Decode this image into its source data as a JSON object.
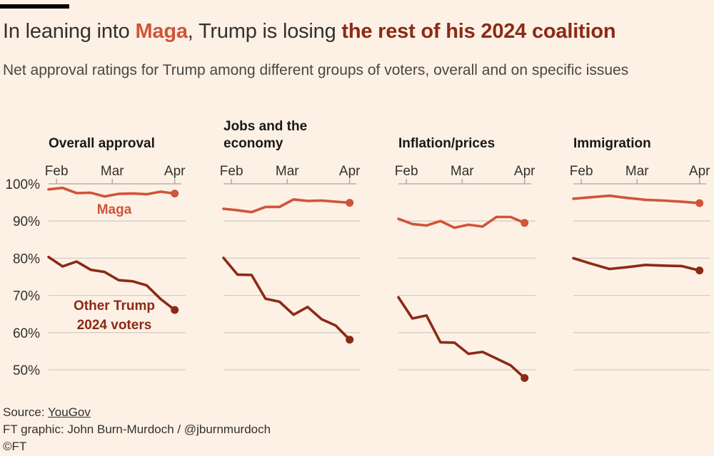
{
  "header": {
    "title_pre": "In leaning into ",
    "title_maga": "Maga",
    "title_mid": ", Trump is losing ",
    "title_rest": "the rest of his 2024 coalition",
    "subtitle": "Net approval ratings for Trump among different groups of voters, overall and on specific issues"
  },
  "colors": {
    "maga": "#d0543a",
    "other": "#8b2a17",
    "grid": "#d6ccc2",
    "axis": "#a9a29b",
    "text": "#33302e",
    "background": "#fdf1e5"
  },
  "chart_data": {
    "type": "line",
    "ylim": [
      45,
      102
    ],
    "yticks": [
      50,
      60,
      70,
      80,
      90,
      100
    ],
    "ytick_labels": [
      "50%",
      "60%",
      "70%",
      "80%",
      "90%",
      "100%"
    ],
    "xticks": [
      "Feb",
      "Mar",
      "Apr"
    ],
    "grid": true,
    "series_labels": {
      "maga": "Maga",
      "other_line1": "Other Trump",
      "other_line2": "2024 voters"
    },
    "panels": [
      {
        "title_lines": [
          "Overall approval"
        ],
        "series": [
          {
            "key": "maga",
            "values": [
              98.5,
              98.9,
              97.5,
              97.6,
              96.6,
              97.3,
              97.4,
              97.2,
              97.9,
              97.4
            ]
          },
          {
            "key": "other",
            "values": [
              80.3,
              77.8,
              79.1,
              76.9,
              76.3,
              74.1,
              73.8,
              72.7,
              69.0,
              66.1
            ]
          }
        ]
      },
      {
        "title_lines": [
          "Jobs and the",
          "economy"
        ],
        "series": [
          {
            "key": "maga",
            "values": [
              93.3,
              92.9,
              92.4,
              93.8,
              93.8,
              95.8,
              95.4,
              95.5,
              95.2,
              94.9
            ]
          },
          {
            "key": "other",
            "values": [
              80.1,
              75.6,
              75.5,
              69.1,
              68.3,
              64.8,
              66.9,
              63.6,
              61.9,
              58.1
            ]
          }
        ]
      },
      {
        "title_lines": [
          "Inflation/prices"
        ],
        "series": [
          {
            "key": "maga",
            "values": [
              90.6,
              89.2,
              88.8,
              90.0,
              88.2,
              89.0,
              88.5,
              91.1,
              91.1,
              89.5
            ]
          },
          {
            "key": "other",
            "values": [
              69.5,
              63.8,
              64.6,
              57.4,
              57.3,
              54.3,
              54.8,
              53.0,
              51.2,
              47.8
            ]
          }
        ]
      },
      {
        "title_lines": [
          "Immigration"
        ],
        "series": [
          {
            "key": "maga",
            "values": [
              96.0,
              96.4,
              96.8,
              96.2,
              95.7,
              95.5,
              95.2,
              94.8
            ]
          },
          {
            "key": "other",
            "values": [
              80.0,
              78.5,
              77.1,
              77.6,
              78.2,
              78.0,
              77.9,
              76.7
            ]
          }
        ]
      }
    ]
  },
  "footer": {
    "source_label": "Source: ",
    "source_name": "YouGov",
    "credit": "FT graphic: John Burn-Murdoch / @jburnmurdoch",
    "copyright": "©FT"
  }
}
